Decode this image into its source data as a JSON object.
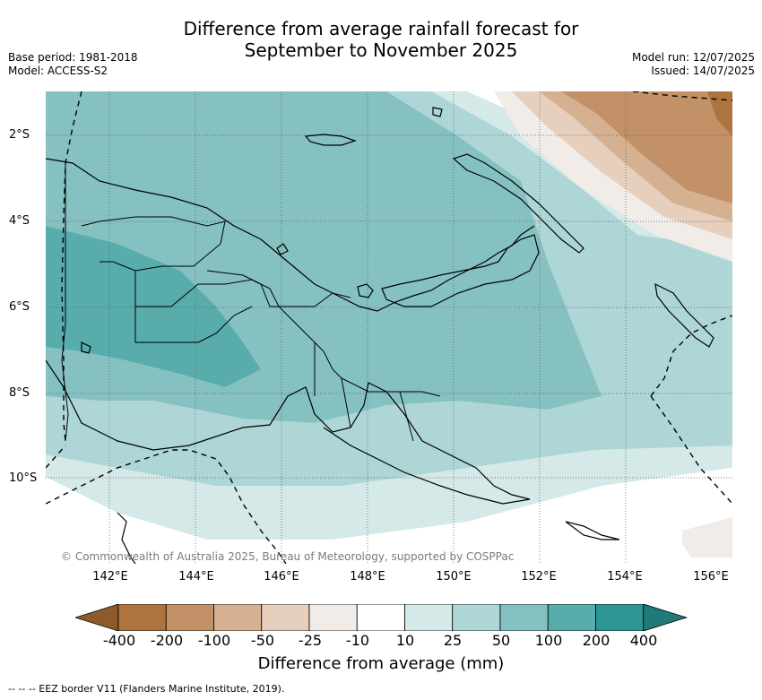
{
  "header": {
    "title_line1": "Difference from average rainfall forecast for",
    "title_line2": "September to November 2025",
    "base_period": "Base period: 1981-2018",
    "model": "Model: ACCESS-S2",
    "model_run": "Model run: 12/07/2025",
    "issued": "Issued: 14/07/2025"
  },
  "map": {
    "lat_labels": [
      "2°S",
      "4°S",
      "6°S",
      "8°S",
      "10°S"
    ],
    "lon_labels": [
      "142°E",
      "144°E",
      "146°E",
      "148°E",
      "150°E",
      "152°E",
      "154°E",
      "156°E"
    ],
    "copyright": "© Commonwealth of Australia 2025, Bureau of Meteorology, supported by COSPPac"
  },
  "colorbar": {
    "label": "Difference from average (mm)",
    "ticks": [
      "-400",
      "-200",
      "-100",
      "-50",
      "-25",
      "-10",
      "10",
      "25",
      "50",
      "100",
      "200",
      "400"
    ],
    "colors": [
      "#8e5a2a",
      "#ad7440",
      "#c29167",
      "#d5b192",
      "#e6cfbd",
      "#f1ece8",
      "#ffffff",
      "#d5e9e9",
      "#aed6d6",
      "#86c1c1",
      "#58acac",
      "#2e9595",
      "#207a7a"
    ]
  },
  "footnote": "--  --  -- EEZ border V11 (Flanders Marine Institute, 2019)."
}
